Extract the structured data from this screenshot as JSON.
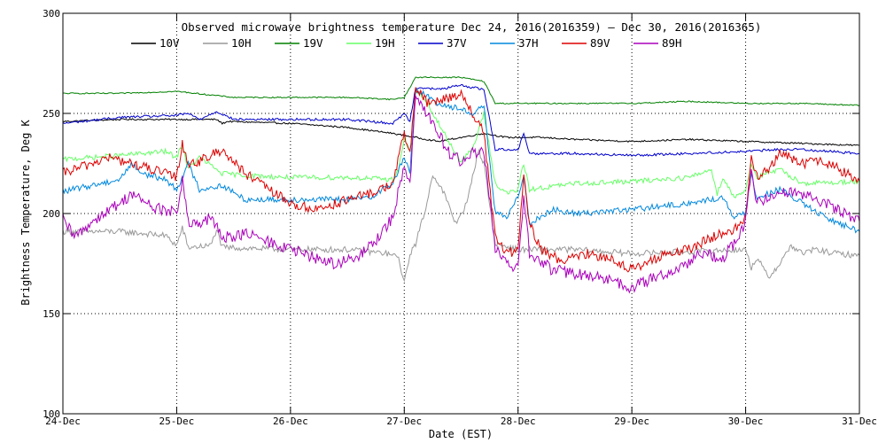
{
  "chart_data": {
    "type": "line",
    "title": "Observed microwave brightness temperature Dec 24, 2016(2016359) – Dec 30, 2016(2016365)",
    "xlabel": "Date (EST)",
    "ylabel": "Brightness Temperature, Deg K",
    "xlim": [
      0,
      7
    ],
    "ylim": [
      100,
      300
    ],
    "x_ticks": [
      {
        "value": 0,
        "label": "24-Dec"
      },
      {
        "value": 1,
        "label": "25-Dec"
      },
      {
        "value": 2,
        "label": "26-Dec"
      },
      {
        "value": 3,
        "label": "27-Dec"
      },
      {
        "value": 4,
        "label": "28-Dec"
      },
      {
        "value": 5,
        "label": "29-Dec"
      },
      {
        "value": 6,
        "label": "30-Dec"
      },
      {
        "value": 7,
        "label": "31-Dec"
      }
    ],
    "y_ticks": [
      {
        "value": 100,
        "label": "100"
      },
      {
        "value": 150,
        "label": "150"
      },
      {
        "value": 200,
        "label": "200"
      },
      {
        "value": 250,
        "label": "250"
      },
      {
        "value": 300,
        "label": "300"
      }
    ],
    "grid": "dotted",
    "legend_position": "top",
    "series": [
      {
        "name": "10V",
        "color": "#000000",
        "points": [
          [
            0,
            246
          ],
          [
            0.5,
            247
          ],
          [
            1,
            247
          ],
          [
            1.35,
            247
          ],
          [
            1.4,
            245
          ],
          [
            1.45,
            246
          ],
          [
            2,
            245
          ],
          [
            2.5,
            243
          ],
          [
            2.9,
            240
          ],
          [
            3.1,
            238
          ],
          [
            3.3,
            236
          ],
          [
            3.5,
            238
          ],
          [
            3.7,
            240
          ],
          [
            3.9,
            238
          ],
          [
            4.2,
            238
          ],
          [
            4.5,
            237
          ],
          [
            5,
            236
          ],
          [
            5.5,
            237
          ],
          [
            6,
            236
          ],
          [
            6.5,
            235
          ],
          [
            7,
            234
          ]
        ]
      },
      {
        "name": "10H",
        "color": "#999999",
        "points": [
          [
            0,
            191
          ],
          [
            0.5,
            191
          ],
          [
            0.9,
            189
          ],
          [
            1.0,
            184
          ],
          [
            1.05,
            193
          ],
          [
            1.1,
            183
          ],
          [
            1.3,
            184
          ],
          [
            1.35,
            192
          ],
          [
            1.4,
            183
          ],
          [
            1.45,
            183
          ],
          [
            2,
            182
          ],
          [
            2.5,
            182
          ],
          [
            2.85,
            180
          ],
          [
            2.95,
            178
          ],
          [
            3.0,
            165
          ],
          [
            3.05,
            180
          ],
          [
            3.1,
            185
          ],
          [
            3.2,
            205
          ],
          [
            3.25,
            220
          ],
          [
            3.35,
            210
          ],
          [
            3.45,
            195
          ],
          [
            3.5,
            200
          ],
          [
            3.55,
            205
          ],
          [
            3.6,
            218
          ],
          [
            3.65,
            232
          ],
          [
            3.7,
            225
          ],
          [
            3.75,
            205
          ],
          [
            3.8,
            185
          ],
          [
            4.0,
            182
          ],
          [
            4.5,
            182
          ],
          [
            5,
            180
          ],
          [
            5.5,
            181
          ],
          [
            6.0,
            182
          ],
          [
            6.05,
            173
          ],
          [
            6.1,
            178
          ],
          [
            6.2,
            168
          ],
          [
            6.3,
            175
          ],
          [
            6.4,
            184
          ],
          [
            6.5,
            180
          ],
          [
            6.6,
            182
          ],
          [
            6.8,
            180
          ],
          [
            7,
            179
          ]
        ]
      },
      {
        "name": "19V",
        "color": "#008000",
        "points": [
          [
            0,
            260
          ],
          [
            0.5,
            260
          ],
          [
            1,
            261
          ],
          [
            1.5,
            258
          ],
          [
            2,
            258
          ],
          [
            2.5,
            258
          ],
          [
            2.9,
            257
          ],
          [
            3.0,
            258
          ],
          [
            3.1,
            268
          ],
          [
            3.3,
            268
          ],
          [
            3.5,
            268
          ],
          [
            3.7,
            266
          ],
          [
            3.8,
            255
          ],
          [
            4,
            255
          ],
          [
            4.5,
            255
          ],
          [
            5,
            255
          ],
          [
            5.5,
            256
          ],
          [
            6,
            255
          ],
          [
            6.5,
            255
          ],
          [
            7,
            254
          ]
        ]
      },
      {
        "name": "19H",
        "color": "#66ff66",
        "points": [
          [
            0,
            227
          ],
          [
            0.5,
            229
          ],
          [
            0.9,
            231
          ],
          [
            1.0,
            228
          ],
          [
            1.05,
            235
          ],
          [
            1.1,
            222
          ],
          [
            1.2,
            228
          ],
          [
            1.4,
            220
          ],
          [
            1.6,
            219
          ],
          [
            2.0,
            218
          ],
          [
            2.5,
            218
          ],
          [
            2.9,
            217
          ],
          [
            2.95,
            222
          ],
          [
            3.0,
            238
          ],
          [
            3.05,
            230
          ],
          [
            3.1,
            262
          ],
          [
            3.2,
            255
          ],
          [
            3.3,
            245
          ],
          [
            3.4,
            235
          ],
          [
            3.5,
            226
          ],
          [
            3.6,
            232
          ],
          [
            3.7,
            250
          ],
          [
            3.8,
            215
          ],
          [
            3.9,
            210
          ],
          [
            4.0,
            212
          ],
          [
            4.05,
            225
          ],
          [
            4.1,
            212
          ],
          [
            4.5,
            215
          ],
          [
            5,
            216
          ],
          [
            5.5,
            218
          ],
          [
            5.7,
            222
          ],
          [
            5.75,
            210
          ],
          [
            5.8,
            218
          ],
          [
            5.9,
            208
          ],
          [
            6.0,
            212
          ],
          [
            6.05,
            225
          ],
          [
            6.1,
            218
          ],
          [
            6.2,
            220
          ],
          [
            6.3,
            222
          ],
          [
            6.5,
            215
          ],
          [
            7,
            216
          ]
        ]
      },
      {
        "name": "37V",
        "color": "#0000cc",
        "points": [
          [
            0,
            245
          ],
          [
            0.5,
            248
          ],
          [
            1,
            249
          ],
          [
            1.1,
            250
          ],
          [
            1.2,
            247
          ],
          [
            1.35,
            251
          ],
          [
            1.5,
            247
          ],
          [
            2,
            247
          ],
          [
            2.5,
            247
          ],
          [
            2.9,
            245
          ],
          [
            3.0,
            250
          ],
          [
            3.05,
            246
          ],
          [
            3.1,
            263
          ],
          [
            3.3,
            262
          ],
          [
            3.5,
            264
          ],
          [
            3.7,
            262
          ],
          [
            3.8,
            232
          ],
          [
            4.0,
            232
          ],
          [
            4.05,
            240
          ],
          [
            4.1,
            230
          ],
          [
            4.5,
            230
          ],
          [
            5,
            229
          ],
          [
            5.5,
            230
          ],
          [
            6,
            231
          ],
          [
            6.3,
            232
          ],
          [
            6.5,
            232
          ],
          [
            7,
            230
          ]
        ]
      },
      {
        "name": "37H",
        "color": "#0088dd",
        "points": [
          [
            0,
            211
          ],
          [
            0.5,
            217
          ],
          [
            0.6,
            225
          ],
          [
            0.7,
            220
          ],
          [
            0.9,
            217
          ],
          [
            1.0,
            212
          ],
          [
            1.1,
            225
          ],
          [
            1.2,
            212
          ],
          [
            1.4,
            214
          ],
          [
            1.6,
            207
          ],
          [
            2,
            207
          ],
          [
            2.5,
            207
          ],
          [
            2.7,
            208
          ],
          [
            2.8,
            212
          ],
          [
            2.9,
            215
          ],
          [
            3.0,
            228
          ],
          [
            3.05,
            220
          ],
          [
            3.1,
            262
          ],
          [
            3.3,
            255
          ],
          [
            3.5,
            252
          ],
          [
            3.6,
            250
          ],
          [
            3.7,
            254
          ],
          [
            3.8,
            200
          ],
          [
            3.9,
            198
          ],
          [
            4.0,
            208
          ],
          [
            4.05,
            220
          ],
          [
            4.1,
            195
          ],
          [
            4.3,
            202
          ],
          [
            4.5,
            200
          ],
          [
            5,
            202
          ],
          [
            5.5,
            205
          ],
          [
            5.8,
            208
          ],
          [
            5.9,
            198
          ],
          [
            6.0,
            200
          ],
          [
            6.05,
            220
          ],
          [
            6.1,
            208
          ],
          [
            6.3,
            212
          ],
          [
            6.5,
            205
          ],
          [
            6.7,
            198
          ],
          [
            7,
            191
          ]
        ]
      },
      {
        "name": "89V",
        "color": "#dd0000",
        "points": [
          [
            0,
            220
          ],
          [
            0.2,
            224
          ],
          [
            0.4,
            228
          ],
          [
            0.6,
            225
          ],
          [
            0.9,
            220
          ],
          [
            1.0,
            218
          ],
          [
            1.05,
            235
          ],
          [
            1.1,
            225
          ],
          [
            1.2,
            226
          ],
          [
            1.4,
            232
          ],
          [
            1.6,
            220
          ],
          [
            2.0,
            205
          ],
          [
            2.2,
            202
          ],
          [
            2.4,
            205
          ],
          [
            2.7,
            210
          ],
          [
            2.9,
            215
          ],
          [
            3.0,
            240
          ],
          [
            3.05,
            230
          ],
          [
            3.1,
            263
          ],
          [
            3.2,
            255
          ],
          [
            3.4,
            258
          ],
          [
            3.5,
            260
          ],
          [
            3.6,
            250
          ],
          [
            3.7,
            240
          ],
          [
            3.8,
            188
          ],
          [
            3.9,
            180
          ],
          [
            4.0,
            182
          ],
          [
            4.05,
            218
          ],
          [
            4.1,
            195
          ],
          [
            4.2,
            182
          ],
          [
            4.4,
            176
          ],
          [
            4.6,
            180
          ],
          [
            4.8,
            178
          ],
          [
            5.0,
            172
          ],
          [
            5.1,
            174
          ],
          [
            5.3,
            180
          ],
          [
            5.5,
            182
          ],
          [
            5.7,
            188
          ],
          [
            5.9,
            192
          ],
          [
            6.0,
            198
          ],
          [
            6.05,
            228
          ],
          [
            6.1,
            218
          ],
          [
            6.2,
            222
          ],
          [
            6.3,
            230
          ],
          [
            6.5,
            225
          ],
          [
            6.7,
            226
          ],
          [
            7,
            216
          ]
        ]
      },
      {
        "name": "89H",
        "color": "#aa00bb",
        "points": [
          [
            0,
            197
          ],
          [
            0.1,
            188
          ],
          [
            0.3,
            198
          ],
          [
            0.5,
            205
          ],
          [
            0.6,
            210
          ],
          [
            0.8,
            203
          ],
          [
            1.0,
            200
          ],
          [
            1.05,
            218
          ],
          [
            1.1,
            195
          ],
          [
            1.2,
            194
          ],
          [
            1.3,
            198
          ],
          [
            1.4,
            188
          ],
          [
            1.6,
            190
          ],
          [
            2.0,
            182
          ],
          [
            2.2,
            178
          ],
          [
            2.4,
            175
          ],
          [
            2.6,
            178
          ],
          [
            2.8,
            190
          ],
          [
            2.9,
            198
          ],
          [
            3.0,
            225
          ],
          [
            3.05,
            215
          ],
          [
            3.1,
            260
          ],
          [
            3.2,
            250
          ],
          [
            3.3,
            240
          ],
          [
            3.4,
            230
          ],
          [
            3.5,
            226
          ],
          [
            3.6,
            230
          ],
          [
            3.7,
            232
          ],
          [
            3.8,
            182
          ],
          [
            3.9,
            175
          ],
          [
            4.0,
            172
          ],
          [
            4.05,
            210
          ],
          [
            4.1,
            180
          ],
          [
            4.3,
            172
          ],
          [
            4.5,
            170
          ],
          [
            4.7,
            168
          ],
          [
            4.9,
            165
          ],
          [
            5.0,
            163
          ],
          [
            5.2,
            168
          ],
          [
            5.4,
            172
          ],
          [
            5.6,
            180
          ],
          [
            5.8,
            178
          ],
          [
            5.9,
            185
          ],
          [
            6.0,
            196
          ],
          [
            6.05,
            220
          ],
          [
            6.1,
            205
          ],
          [
            6.2,
            208
          ],
          [
            6.3,
            212
          ],
          [
            6.5,
            210
          ],
          [
            6.7,
            205
          ],
          [
            7,
            196
          ]
        ]
      }
    ]
  }
}
